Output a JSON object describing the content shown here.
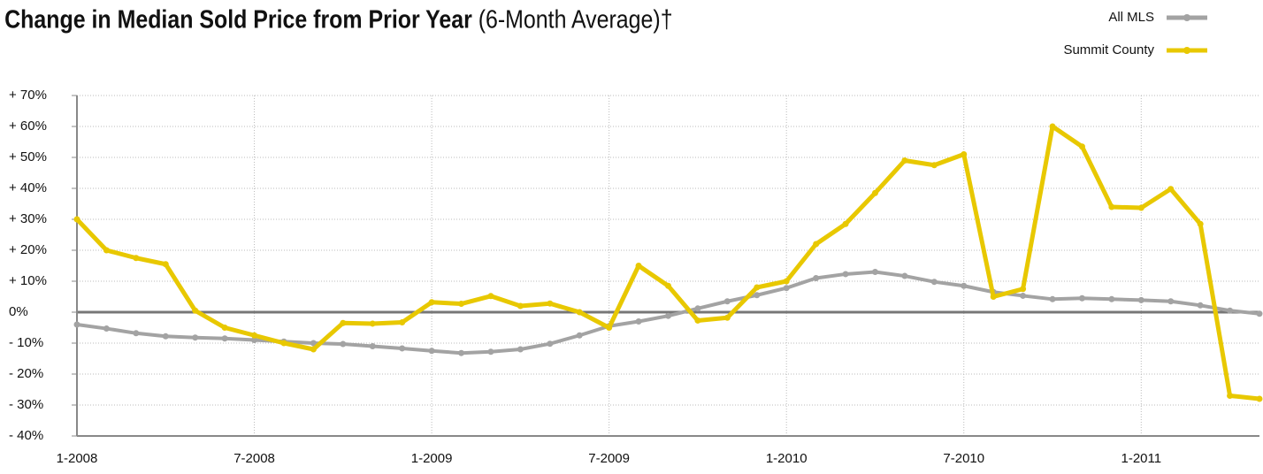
{
  "chart_data": {
    "type": "line",
    "title": "Change in Median Sold Price from Prior Year",
    "subtitle": "(6-Month Average)†",
    "categories": [
      "1-2008",
      null,
      null,
      null,
      null,
      null,
      "7-2008",
      null,
      null,
      null,
      null,
      null,
      "1-2009",
      null,
      null,
      null,
      null,
      null,
      "7-2009",
      null,
      null,
      null,
      null,
      null,
      "1-2010",
      null,
      null,
      null,
      null,
      null,
      "7-2010",
      null,
      null,
      null,
      null,
      null,
      "1-2011",
      null,
      null,
      null,
      null
    ],
    "series": [
      {
        "name": "All MLS",
        "color": "#a3a3a3",
        "values": [
          -4,
          -5.3,
          -6.8,
          -7.8,
          -8.2,
          -8.5,
          -9,
          -9.5,
          -10,
          -10.3,
          -11,
          -11.7,
          -12.5,
          -13.2,
          -12.8,
          -12,
          -10.2,
          -7.5,
          -4.5,
          -3,
          -1.2,
          1.2,
          3.5,
          5.5,
          7.8,
          11,
          12.3,
          13,
          11.7,
          9.8,
          8.5,
          6.5,
          5.3,
          4.2,
          4.5,
          4.2,
          3.9,
          3.5,
          2.2,
          0.5,
          -0.5
        ]
      },
      {
        "name": "Summit County",
        "color": "#e8c800",
        "values": [
          30,
          20,
          17.5,
          15.5,
          0.5,
          -5,
          -7.5,
          -10,
          -12,
          -3.5,
          -3.7,
          -3.3,
          3.2,
          2.7,
          5.2,
          2,
          2.8,
          0,
          -5,
          15,
          8.5,
          -2.7,
          -1.8,
          8,
          10,
          22,
          28.5,
          38.5,
          49,
          47.5,
          51,
          5,
          7.5,
          60,
          53.5,
          34,
          33.7,
          39.8,
          28.5,
          -27,
          -28
        ]
      }
    ],
    "ylim": [
      -40,
      70
    ],
    "yticks": [
      {
        "value": -40,
        "label": "- 40%"
      },
      {
        "value": -30,
        "label": "- 30%"
      },
      {
        "value": -20,
        "label": "- 20%"
      },
      {
        "value": -10,
        "label": "- 10%"
      },
      {
        "value": 0,
        "label": "0%"
      },
      {
        "value": 10,
        "label": "+ 10%"
      },
      {
        "value": 20,
        "label": "+ 20%"
      },
      {
        "value": 30,
        "label": "+ 30%"
      },
      {
        "value": 40,
        "label": "+ 40%"
      },
      {
        "value": 50,
        "label": "+ 50%"
      },
      {
        "value": 60,
        "label": "+ 60%"
      },
      {
        "value": 70,
        "label": "+ 70%"
      }
    ],
    "grid": true,
    "legend": "top-right"
  }
}
